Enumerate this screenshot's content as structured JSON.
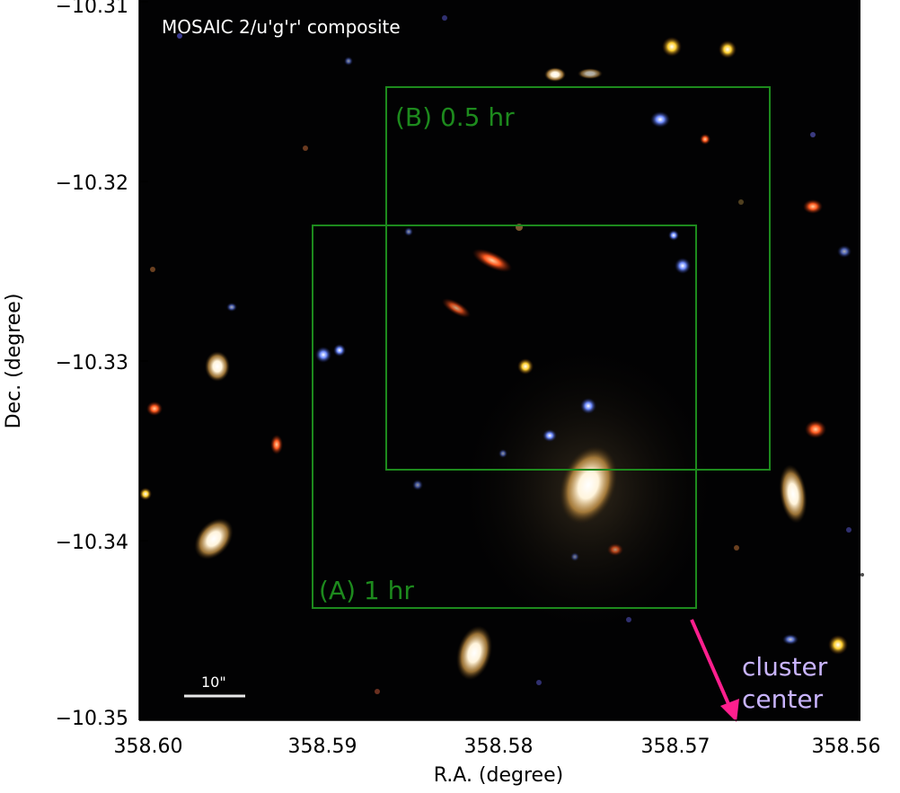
{
  "panel_title": "MOSAIC 2/u'g'r' composite",
  "axes": {
    "x_label": "R.A. (degree)",
    "y_label": "Dec. (degree)",
    "x_ticks": [
      "358.60",
      "358.59",
      "358.58",
      "358.57",
      "358.56"
    ],
    "y_ticks": [
      "−10.31",
      "−10.32",
      "−10.33",
      "−10.34",
      "−10.35"
    ]
  },
  "regions": [
    {
      "label": "(B) 0.5 hr",
      "color": "#1d8a1d"
    },
    {
      "label": "(A) 1 hr",
      "color": "#1d8a1d"
    }
  ],
  "scale_bar": {
    "label": "10\""
  },
  "cluster_center": {
    "line1": "cluster",
    "line2": "center",
    "arrow_color": "#ff1f8e",
    "text_color": "#c9b4ff"
  }
}
